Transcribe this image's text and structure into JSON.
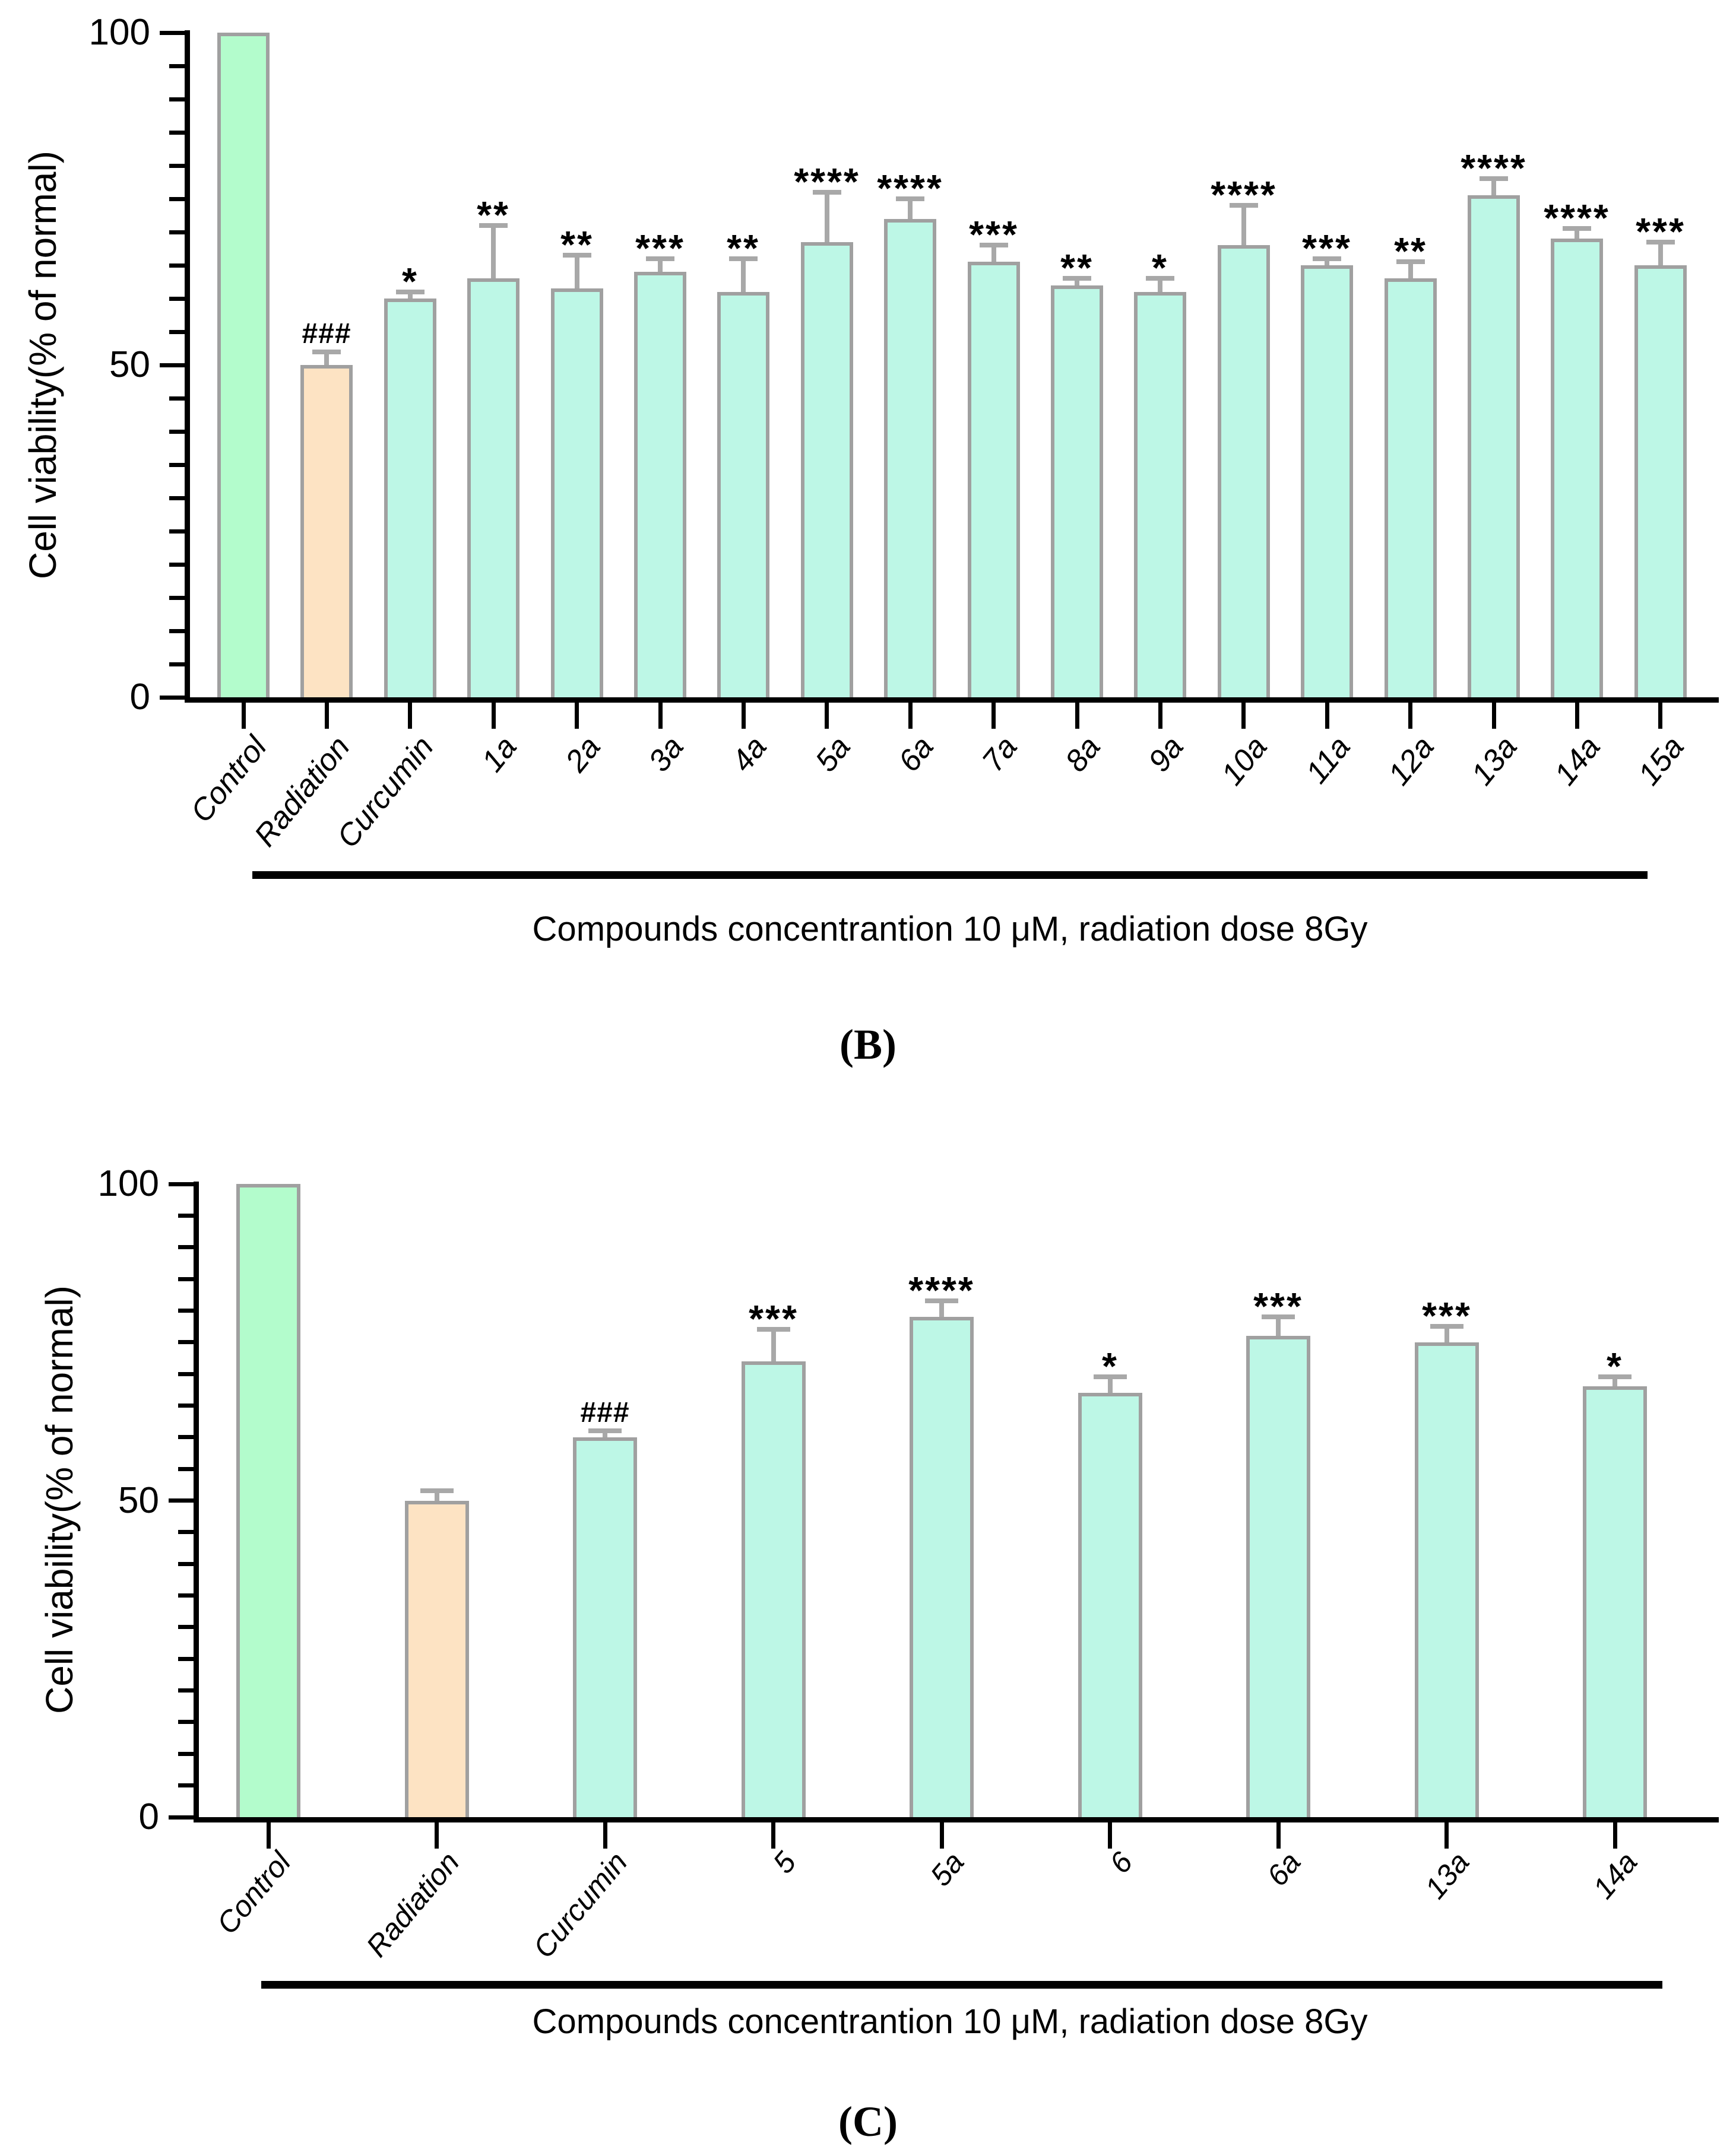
{
  "figure": {
    "panel_b_label": "(B)",
    "panel_c_label": "(C)"
  },
  "colors": {
    "control_fill": "#b3fccc",
    "radiation_fill": "#fde3c3",
    "compound_fill": "#bdf7e6",
    "bar_border": "#a0a0a0",
    "error_bar": "#a8a8a8",
    "axis": "#000000"
  },
  "chart_data": [
    {
      "type": "bar",
      "panel": "B",
      "title": "",
      "xlabel": "",
      "ylabel": "Cell viability(% of normal)",
      "caption": "Compounds concentrantion 10 μM, radiation dose 8Gy",
      "ylim": [
        0,
        100
      ],
      "yticks_major": [
        0,
        50,
        100
      ],
      "ytick_minor_step": 5,
      "grid": "off",
      "legend": "none",
      "categories": [
        "Control",
        "Radiation",
        "Curcumin",
        "1a",
        "2a",
        "3a",
        "4a",
        "5a",
        "6a",
        "7a",
        "8a",
        "9a",
        "10a",
        "11a",
        "12a",
        "13a",
        "14a",
        "15a"
      ],
      "values": [
        100,
        50,
        60,
        63,
        61.5,
        64,
        61,
        68.5,
        72,
        65.5,
        62,
        61,
        68,
        65,
        63,
        75.5,
        69,
        65
      ],
      "errors": [
        0,
        2,
        1,
        8,
        5,
        2,
        5,
        7.5,
        3,
        2.5,
        1,
        2,
        6,
        1,
        2.5,
        2.5,
        1.5,
        3.5
      ],
      "annotations": [
        "",
        "###",
        "*",
        "**",
        "**",
        "***",
        "**",
        "****",
        "****",
        "***",
        "**",
        "*",
        "****",
        "***",
        "**",
        "****",
        "****",
        "***"
      ],
      "bar_color_keys": [
        "control_fill",
        "radiation_fill",
        "compound_fill",
        "compound_fill",
        "compound_fill",
        "compound_fill",
        "compound_fill",
        "compound_fill",
        "compound_fill",
        "compound_fill",
        "compound_fill",
        "compound_fill",
        "compound_fill",
        "compound_fill",
        "compound_fill",
        "compound_fill",
        "compound_fill",
        "compound_fill"
      ]
    },
    {
      "type": "bar",
      "panel": "C",
      "title": "",
      "xlabel": "",
      "ylabel": "Cell viability(% of normal)",
      "caption": "Compounds concentrantion 10 μM, radiation dose 8Gy",
      "ylim": [
        0,
        100
      ],
      "yticks_major": [
        0,
        50,
        100
      ],
      "ytick_minor_step": 5,
      "grid": "off",
      "legend": "none",
      "categories": [
        "Control",
        "Radiation",
        "Curcumin",
        "5",
        "5a",
        "6",
        "6a",
        "13a",
        "14a"
      ],
      "values": [
        100,
        50,
        60,
        72,
        79,
        67,
        76,
        75,
        68
      ],
      "errors": [
        0,
        1.5,
        1,
        5,
        2.5,
        2.5,
        3,
        2.5,
        1.5
      ],
      "annotations": [
        "",
        "",
        "###",
        "***",
        "****",
        "*",
        "***",
        "***",
        "*"
      ],
      "bar_color_keys": [
        "control_fill",
        "radiation_fill",
        "compound_fill",
        "compound_fill",
        "compound_fill",
        "compound_fill",
        "compound_fill",
        "compound_fill",
        "compound_fill"
      ]
    }
  ]
}
